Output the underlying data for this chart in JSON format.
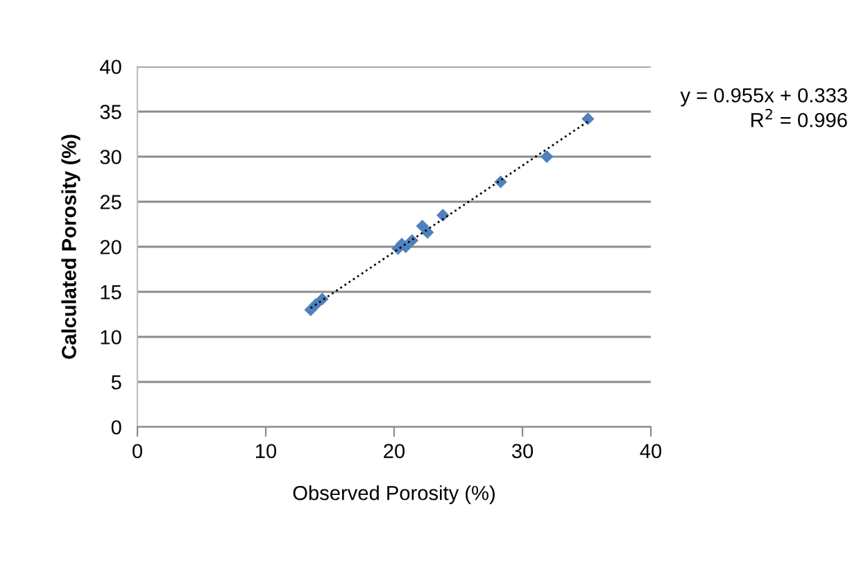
{
  "chart_data": {
    "type": "scatter",
    "xlabel": "Observed Porosity (%)",
    "ylabel": "Calculated Porosity (%)",
    "x": [
      13.5,
      13.9,
      14.4,
      20.3,
      20.6,
      20.9,
      21.4,
      22.2,
      22.6,
      23.8,
      28.3,
      31.9,
      35.1
    ],
    "series": [
      {
        "color": "#4f81bd",
        "values": [
          13.0,
          13.6,
          14.2,
          19.8,
          20.3,
          20.0,
          20.7,
          22.3,
          21.6,
          23.5,
          27.2,
          30.0,
          34.2
        ],
        "marker": "diamond"
      },
      {
        "type": "line",
        "color": "#000000",
        "x": [
          13.5,
          35.1
        ],
        "values": [
          13.2,
          33.9
        ],
        "line_style": "dotted",
        "marker": "none"
      }
    ],
    "xlim": [
      0,
      40
    ],
    "xticks": [
      0,
      10,
      20,
      30,
      40
    ],
    "ylim": [
      0,
      40
    ],
    "yticks": [
      0,
      5,
      10,
      15,
      20,
      25,
      30,
      35,
      40
    ],
    "grid": "y",
    "legend": false,
    "annotations": [
      "y = 0.955x + 0.333",
      "R$^{2}$ = 0.996"
    ]
  }
}
